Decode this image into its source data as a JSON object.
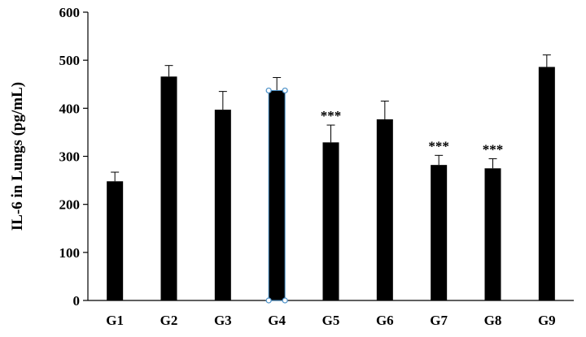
{
  "chart_data": {
    "type": "bar",
    "title": "",
    "xlabel": "",
    "ylabel": "IL-6 in Lungs (pg/mL)",
    "categories": [
      "G1",
      "G2",
      "G3",
      "G4",
      "G5",
      "G6",
      "G7",
      "G8",
      "G9"
    ],
    "values": [
      248,
      466,
      397,
      437,
      329,
      377,
      282,
      275,
      486
    ],
    "error": [
      19,
      23,
      38,
      27,
      36,
      38,
      20,
      20,
      25
    ],
    "annotations": [
      "",
      "",
      "",
      "",
      "***",
      "",
      "***",
      "***",
      ""
    ],
    "ylim": [
      0,
      600
    ],
    "yticks": [
      0,
      100,
      200,
      300,
      400,
      500,
      600
    ],
    "grid": false,
    "legend": "none",
    "bar_color": "#000000",
    "selected_category": "G4",
    "selection_handle_color": "#4a90c8"
  }
}
